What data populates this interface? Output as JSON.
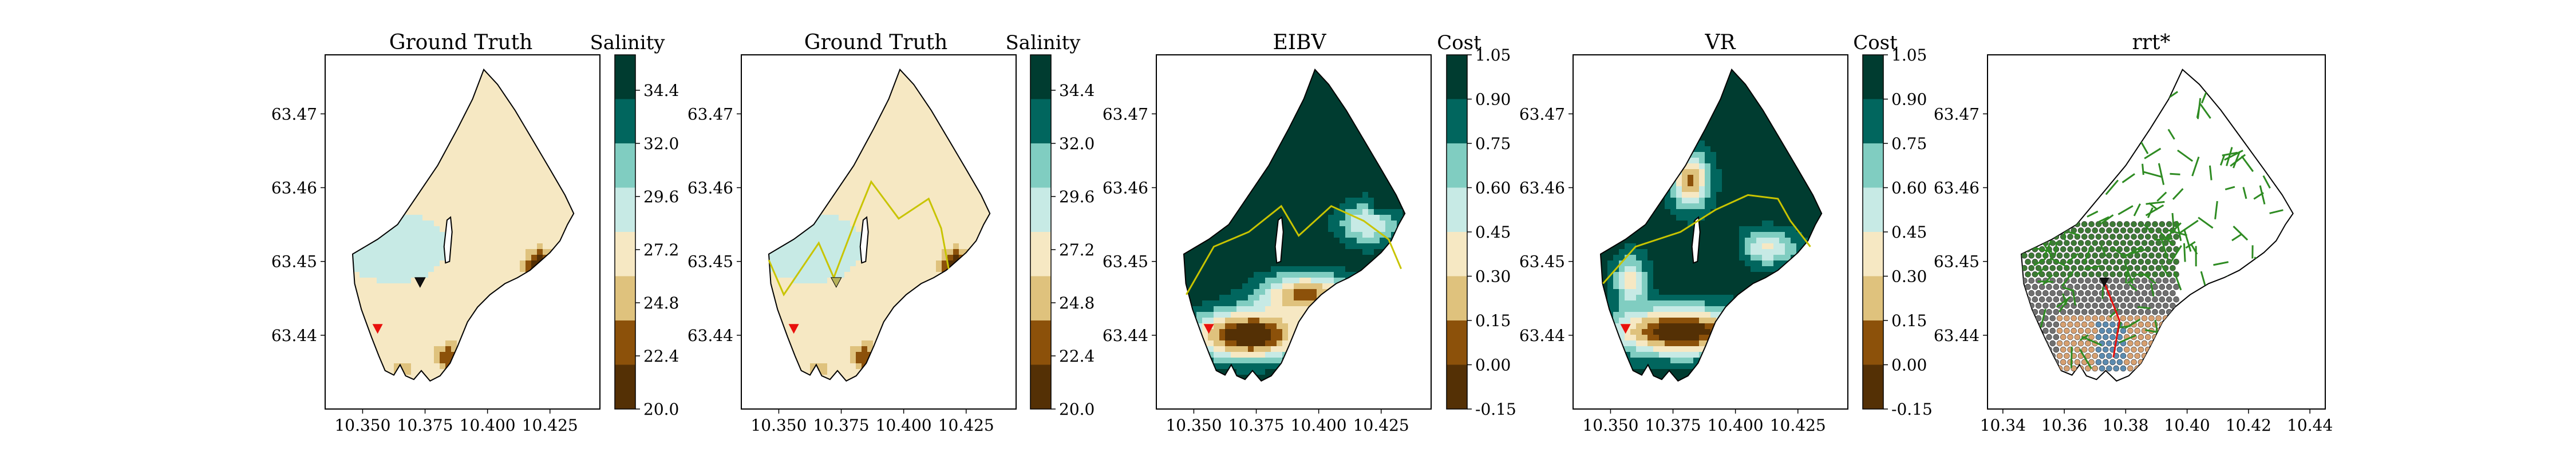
{
  "colors": {
    "brbg": [
      "#543005",
      "#8c510a",
      "#bf812d",
      "#dfc27d",
      "#f6e8c3",
      "#f5f5f5",
      "#c7eae5",
      "#80cdc1",
      "#35978f",
      "#01665e",
      "#003c30"
    ],
    "boundary": "#000000",
    "path_yellow": "#c8c400",
    "agent_red": "#e8100c",
    "tree_green": "#2e8b22",
    "node_gray": "#707070",
    "node_green": "#3d7a35",
    "node_orange": "#d7a070",
    "node_blue": "#5b8bb0",
    "contour_teal": "#157f72"
  },
  "chart_data": [
    {
      "type": "heatmap",
      "title": "Ground Truth",
      "xticks": [
        "10.350",
        "10.375",
        "10.400",
        "10.425"
      ],
      "xtick_values": [
        10.35,
        10.375,
        10.4,
        10.425
      ],
      "yticks": [
        "63.47",
        "63.46",
        "63.45",
        "63.44"
      ],
      "ytick_values": [
        63.47,
        63.46,
        63.45,
        63.44
      ],
      "xlim": [
        10.335,
        10.445
      ],
      "ylim": [
        63.43,
        63.478
      ],
      "colorbar": {
        "label": "Salinity",
        "ticks": [
          "34.4",
          "32.0",
          "29.6",
          "27.2",
          "24.8",
          "22.4",
          "20.0"
        ],
        "range": [
          20.0,
          36.0
        ]
      },
      "agent": {
        "x": 10.356,
        "y": 63.4409
      },
      "marker": {
        "x": 10.373,
        "y": 63.4472,
        "color": "#111111"
      },
      "path": []
    },
    {
      "type": "heatmap",
      "title": "Ground Truth",
      "xticks": [
        "10.350",
        "10.375",
        "10.400",
        "10.425"
      ],
      "xtick_values": [
        10.35,
        10.375,
        10.4,
        10.425
      ],
      "yticks": [
        "63.47",
        "63.46",
        "63.45",
        "63.44"
      ],
      "ytick_values": [
        63.47,
        63.46,
        63.45,
        63.44
      ],
      "xlim": [
        10.335,
        10.445
      ],
      "ylim": [
        63.43,
        63.478
      ],
      "colorbar": {
        "label": "Salinity",
        "ticks": [
          "34.4",
          "32.0",
          "29.6",
          "27.2",
          "24.8",
          "22.4",
          "20.0"
        ],
        "range": [
          20.0,
          36.0
        ]
      },
      "agent": {
        "x": 10.356,
        "y": 63.4409
      },
      "marker": {
        "x": 10.373,
        "y": 63.4472,
        "color": "#b7b25a"
      },
      "path": [
        [
          10.346,
          63.4502
        ],
        [
          10.352,
          63.4455
        ],
        [
          10.366,
          63.4525
        ],
        [
          10.372,
          63.4478
        ],
        [
          10.381,
          63.4558
        ],
        [
          10.387,
          63.4608
        ],
        [
          10.398,
          63.4558
        ],
        [
          10.41,
          63.4585
        ],
        [
          10.415,
          63.4545
        ],
        [
          10.418,
          63.449
        ]
      ]
    },
    {
      "type": "heatmap",
      "title": "EIBV",
      "xticks": [
        "10.350",
        "10.375",
        "10.400",
        "10.425"
      ],
      "xtick_values": [
        10.35,
        10.375,
        10.4,
        10.425
      ],
      "yticks": [
        "63.47",
        "63.46",
        "63.45",
        "63.44"
      ],
      "ytick_values": [
        63.47,
        63.46,
        63.45,
        63.44
      ],
      "xlim": [
        10.335,
        10.445
      ],
      "ylim": [
        63.43,
        63.478
      ],
      "colorbar": {
        "label": "Cost",
        "ticks": [
          "1.05",
          "0.90",
          "0.75",
          "0.60",
          "0.45",
          "0.30",
          "0.15",
          "0.00",
          "-0.15"
        ],
        "range": [
          -0.15,
          1.05
        ]
      },
      "agent": {
        "x": 10.356,
        "y": 63.4409
      },
      "path": [
        [
          10.347,
          63.4455
        ],
        [
          10.358,
          63.452
        ],
        [
          10.372,
          63.454
        ],
        [
          10.385,
          63.4575
        ],
        [
          10.392,
          63.4535
        ],
        [
          10.405,
          63.4575
        ],
        [
          10.418,
          63.4555
        ],
        [
          10.428,
          63.453
        ],
        [
          10.433,
          63.449
        ]
      ]
    },
    {
      "type": "heatmap",
      "title": "VR",
      "xticks": [
        "10.350",
        "10.375",
        "10.400",
        "10.425"
      ],
      "xtick_values": [
        10.35,
        10.375,
        10.4,
        10.425
      ],
      "yticks": [
        "63.47",
        "63.46",
        "63.45",
        "63.44"
      ],
      "ytick_values": [
        63.47,
        63.46,
        63.45,
        63.44
      ],
      "xlim": [
        10.335,
        10.445
      ],
      "ylim": [
        63.43,
        63.478
      ],
      "colorbar": {
        "label": "Cost",
        "ticks": [
          "1.05",
          "0.90",
          "0.75",
          "0.60",
          "0.45",
          "0.30",
          "0.15",
          "0.00",
          "-0.15"
        ],
        "range": [
          -0.15,
          1.05
        ]
      },
      "agent": {
        "x": 10.356,
        "y": 63.4409
      },
      "path": [
        [
          10.347,
          63.447
        ],
        [
          10.36,
          63.452
        ],
        [
          10.378,
          63.454
        ],
        [
          10.392,
          63.457
        ],
        [
          10.405,
          63.459
        ],
        [
          10.417,
          63.4585
        ],
        [
          10.422,
          63.4555
        ],
        [
          10.43,
          63.452
        ]
      ]
    },
    {
      "type": "scatter",
      "title": "rrt*",
      "xticks": [
        "10.34",
        "10.36",
        "10.38",
        "10.40",
        "10.42",
        "10.44"
      ],
      "xtick_values": [
        10.34,
        10.36,
        10.38,
        10.4,
        10.42,
        10.44
      ],
      "yticks": [
        "63.47",
        "63.46",
        "63.45",
        "63.44"
      ],
      "ytick_values": [
        63.47,
        63.46,
        63.45,
        63.44
      ],
      "xlim": [
        10.335,
        10.445
      ],
      "ylim": [
        63.43,
        63.478
      ],
      "agent": {
        "x": 10.373,
        "y": 63.4472
      }
    }
  ]
}
